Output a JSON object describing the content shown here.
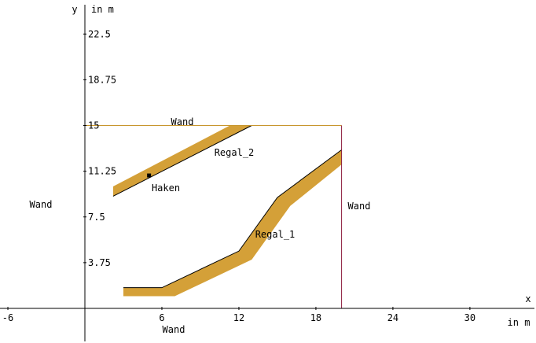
{
  "chart_data": {
    "type": "diagram",
    "x_axis": {
      "label": "x",
      "unit": "in m",
      "range": [
        -6.6,
        34.5
      ],
      "ticks": [
        -6,
        6,
        12,
        18,
        24,
        30
      ],
      "tick_labels": [
        "-6",
        "6",
        "12",
        "18",
        "24",
        "30"
      ]
    },
    "y_axis": {
      "label": "y",
      "unit": "in m",
      "range": [
        -2.6,
        23.6
      ],
      "ticks": [
        3.75,
        7.5,
        11.25,
        15,
        18.75,
        22.5
      ],
      "tick_labels": [
        "3.75",
        "7.5",
        "11.25",
        "15",
        "18.75",
        "22.5"
      ]
    },
    "walls": [
      {
        "label": "Wand",
        "from": [
          0,
          15
        ],
        "to": [
          20,
          15
        ],
        "color": "#c8962e"
      },
      {
        "label": "Wand",
        "from": [
          20,
          15
        ],
        "to": [
          20,
          0
        ],
        "color": "#8b1a3a"
      },
      {
        "label": "Wand",
        "from": [
          0,
          0
        ],
        "to": [
          0,
          15
        ]
      },
      {
        "label": "Wand",
        "from": [
          0,
          0
        ],
        "to": [
          20,
          0
        ]
      }
    ],
    "shelves": [
      {
        "name": "Regal_1",
        "color": "#d4a038",
        "outer_edge": [
          [
            3,
            1.7
          ],
          [
            6,
            1.7
          ],
          [
            12,
            4.7
          ],
          [
            15,
            9.1
          ],
          [
            20,
            13.0
          ]
        ],
        "inner_edge": [
          [
            3,
            1.0
          ],
          [
            7,
            1.0
          ],
          [
            13,
            4.0
          ],
          [
            16,
            8.4
          ],
          [
            20,
            11.8
          ]
        ]
      },
      {
        "name": "Regal_2",
        "color": "#d4a038",
        "outer_edge": [
          [
            2.2,
            10.0
          ],
          [
            11.3,
            15.0
          ],
          [
            13.0,
            15.0
          ],
          [
            2.2,
            9.2
          ]
        ]
      }
    ],
    "points": [
      {
        "name": "Haken",
        "x": 5,
        "y": 10.9
      }
    ],
    "axis_color": "#000000"
  }
}
